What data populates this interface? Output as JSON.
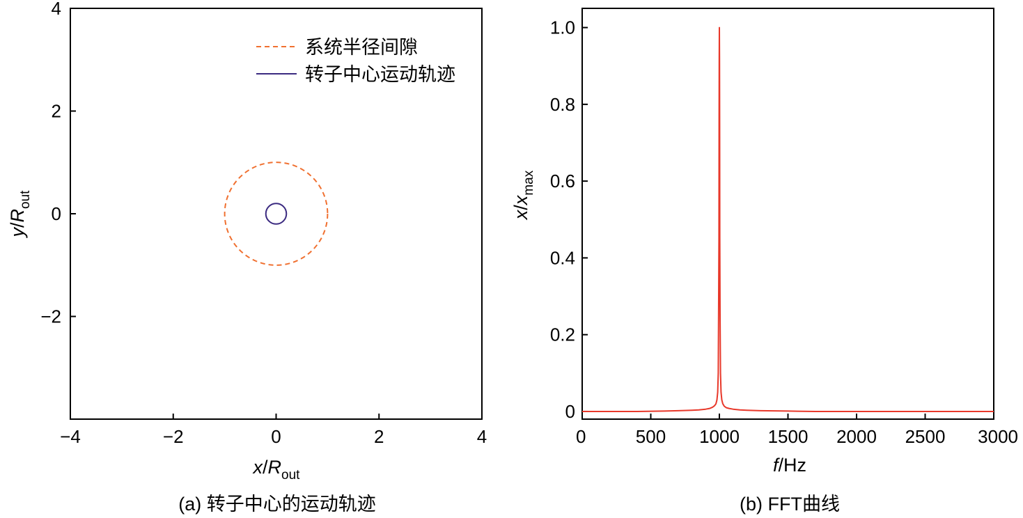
{
  "chart_data": [
    {
      "type": "line",
      "caption": "(a) 转子中心的运动轨迹",
      "xlabel": {
        "var": "x",
        "sep": "/",
        "base": "R",
        "sub": "out"
      },
      "ylabel": {
        "var": "y",
        "sep": "/",
        "base": "R",
        "sub": "out"
      },
      "xlim": [
        -4,
        4
      ],
      "ylim": [
        -4,
        4
      ],
      "xticks": [
        -4,
        -2,
        0,
        2,
        4
      ],
      "yticks": [
        -2,
        0,
        2,
        4
      ],
      "xtick_labels": [
        "−4",
        "−2",
        "0",
        "2",
        "4"
      ],
      "ytick_labels": [
        "−2",
        "0",
        "2",
        "4"
      ],
      "grid": false,
      "legend_position": "top-right",
      "series": [
        {
          "name": "系统半径间隙",
          "shape": "circle",
          "center": [
            0,
            0
          ],
          "radius": 1.0,
          "style": "dashed",
          "color": "#f07030"
        },
        {
          "name": "转子中心运动轨迹",
          "shape": "circle",
          "center": [
            0,
            0
          ],
          "radius": 0.2,
          "style": "solid",
          "color": "#3b2a80"
        }
      ]
    },
    {
      "type": "line",
      "caption": "(b) FFT曲线",
      "xlabel": {
        "var": "f",
        "sep": "/",
        "unit": "Hz"
      },
      "ylabel": {
        "var": "x",
        "sep": "/",
        "base": "x",
        "sub": "max"
      },
      "xlim": [
        0,
        3000
      ],
      "ylim": [
        -0.02,
        1.05
      ],
      "xticks": [
        0,
        500,
        1000,
        1500,
        2000,
        2500,
        3000
      ],
      "yticks": [
        0,
        0.2,
        0.4,
        0.6,
        0.8,
        1.0
      ],
      "xtick_labels": [
        "0",
        "500",
        "1000",
        "1500",
        "2000",
        "2500",
        "3000"
      ],
      "ytick_labels": [
        "0",
        "0.2",
        "0.4",
        "0.6",
        "0.8",
        "1.0"
      ],
      "grid": false,
      "series": [
        {
          "color": "#e8382a",
          "x": [
            0,
            200,
            400,
            600,
            700,
            800,
            850,
            900,
            930,
            950,
            965,
            975,
            982,
            988,
            992,
            995,
            997,
            998,
            999,
            1000,
            1001,
            1002,
            1003,
            1005,
            1008,
            1012,
            1018,
            1025,
            1035,
            1050,
            1070,
            1100,
            1150,
            1200,
            1300,
            1500,
            1700,
            2000,
            2500,
            3000
          ],
          "y": [
            0.0,
            0.0,
            0.0,
            0.001,
            0.002,
            0.003,
            0.004,
            0.006,
            0.008,
            0.011,
            0.015,
            0.02,
            0.03,
            0.05,
            0.1,
            0.3,
            0.45,
            0.75,
            0.92,
            1.0,
            0.92,
            0.75,
            0.45,
            0.25,
            0.1,
            0.05,
            0.03,
            0.02,
            0.014,
            0.01,
            0.008,
            0.006,
            0.004,
            0.003,
            0.002,
            0.001,
            0.0,
            0.0,
            0.0,
            0.0
          ]
        }
      ]
    }
  ]
}
